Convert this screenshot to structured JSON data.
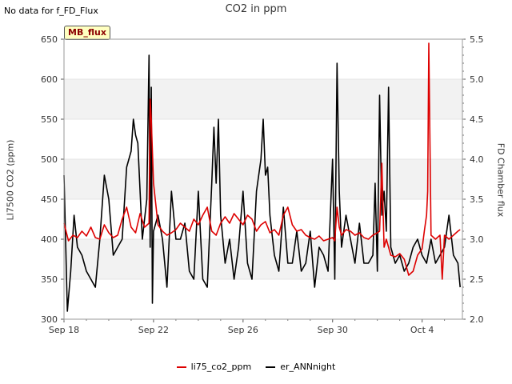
{
  "note": "No data for f_FD_Flux",
  "badge": "MB_flux",
  "chart_data": {
    "type": "line",
    "title": "CO2 in ppm",
    "ylabel": "LI7500 CO2 (ppm)",
    "y2label": "FD Chamber flux",
    "xlim": [
      0,
      17.8
    ],
    "ylim": [
      300,
      650
    ],
    "y2lim": [
      2.0,
      5.5
    ],
    "x_ticks": [
      0,
      4,
      8,
      12,
      16
    ],
    "x_tick_labels": [
      "Sep 18",
      "Sep 22",
      "Sep 26",
      "Sep 30",
      "Oct 4"
    ],
    "y_ticks": [
      300,
      350,
      400,
      450,
      500,
      550,
      600,
      650
    ],
    "y2_ticks": [
      2.0,
      2.5,
      3.0,
      3.5,
      4.0,
      4.5,
      5.0,
      5.5
    ],
    "grid": "horizontal bands",
    "legend_position": "bottom",
    "series": [
      {
        "name": "li75_co2_ppm",
        "color": "#dd0000",
        "axis": "left",
        "x": [
          0.0,
          0.2,
          0.4,
          0.6,
          0.8,
          1.0,
          1.2,
          1.4,
          1.6,
          1.8,
          2.0,
          2.2,
          2.4,
          2.6,
          2.8,
          3.0,
          3.2,
          3.4,
          3.6,
          3.8,
          3.85,
          3.9,
          4.0,
          4.2,
          4.4,
          4.6,
          4.8,
          5.0,
          5.2,
          5.4,
          5.6,
          5.8,
          6.0,
          6.2,
          6.4,
          6.6,
          6.8,
          7.0,
          7.2,
          7.4,
          7.6,
          7.8,
          8.0,
          8.2,
          8.4,
          8.6,
          8.8,
          9.0,
          9.2,
          9.4,
          9.6,
          9.8,
          10.0,
          10.2,
          10.4,
          10.6,
          10.8,
          11.0,
          11.2,
          11.4,
          11.6,
          11.8,
          12.0,
          12.1,
          12.2,
          12.3,
          12.4,
          12.6,
          12.8,
          13.0,
          13.2,
          13.4,
          13.6,
          13.8,
          14.0,
          14.1,
          14.2,
          14.3,
          14.4,
          14.6,
          14.8,
          15.0,
          15.2,
          15.4,
          15.6,
          15.8,
          16.0,
          16.1,
          16.2,
          16.25,
          16.3,
          16.4,
          16.6,
          16.8,
          16.9,
          17.0,
          17.2,
          17.4,
          17.6,
          17.7
        ],
        "values": [
          420,
          398,
          405,
          402,
          410,
          404,
          415,
          402,
          400,
          418,
          408,
          402,
          405,
          425,
          440,
          415,
          408,
          432,
          415,
          420,
          575,
          550,
          470,
          418,
          410,
          405,
          408,
          412,
          420,
          415,
          410,
          425,
          418,
          430,
          440,
          410,
          405,
          420,
          428,
          420,
          432,
          425,
          418,
          430,
          425,
          410,
          418,
          422,
          408,
          412,
          405,
          430,
          440,
          418,
          410,
          412,
          405,
          402,
          400,
          404,
          398,
          400,
          402,
          398,
          440,
          415,
          405,
          412,
          410,
          405,
          408,
          402,
          400,
          405,
          408,
          410,
          495,
          390,
          400,
          380,
          378,
          382,
          375,
          355,
          360,
          380,
          388,
          410,
          430,
          460,
          645,
          405,
          400,
          405,
          350,
          405,
          400,
          405,
          410,
          412
        ]
      },
      {
        "name": "er_ANNnight",
        "color": "#000000",
        "axis": "right",
        "x": [
          0.0,
          0.15,
          0.3,
          0.45,
          0.6,
          0.8,
          1.0,
          1.2,
          1.4,
          1.6,
          1.8,
          2.0,
          2.2,
          2.4,
          2.6,
          2.8,
          3.0,
          3.1,
          3.2,
          3.3,
          3.5,
          3.7,
          3.8,
          3.85,
          3.9,
          3.95,
          4.0,
          4.2,
          4.4,
          4.6,
          4.8,
          5.0,
          5.2,
          5.4,
          5.6,
          5.8,
          6.0,
          6.2,
          6.4,
          6.6,
          6.7,
          6.8,
          6.9,
          7.0,
          7.2,
          7.4,
          7.6,
          7.8,
          8.0,
          8.2,
          8.4,
          8.6,
          8.8,
          8.9,
          9.0,
          9.1,
          9.2,
          9.4,
          9.6,
          9.8,
          10.0,
          10.2,
          10.4,
          10.6,
          10.8,
          11.0,
          11.2,
          11.4,
          11.6,
          11.8,
          12.0,
          12.1,
          12.2,
          12.3,
          12.4,
          12.6,
          12.8,
          13.0,
          13.2,
          13.4,
          13.6,
          13.8,
          13.9,
          14.0,
          14.1,
          14.2,
          14.3,
          14.4,
          14.5,
          14.6,
          14.8,
          15.0,
          15.2,
          15.4,
          15.6,
          15.8,
          16.0,
          16.2,
          16.4,
          16.6,
          16.8,
          17.0,
          17.2,
          17.4,
          17.6,
          17.7
        ],
        "values": [
          3.8,
          2.1,
          2.6,
          3.3,
          2.9,
          2.8,
          2.6,
          2.5,
          2.4,
          3.0,
          3.8,
          3.5,
          2.8,
          2.9,
          3.0,
          3.9,
          4.1,
          4.5,
          4.3,
          4.2,
          3.0,
          3.5,
          5.3,
          2.9,
          4.9,
          2.2,
          3.1,
          3.3,
          3.0,
          2.4,
          3.6,
          3.0,
          3.0,
          3.2,
          2.6,
          2.5,
          3.6,
          2.5,
          2.4,
          3.7,
          4.4,
          3.7,
          4.5,
          3.3,
          2.7,
          3.0,
          2.5,
          2.9,
          3.6,
          2.7,
          2.5,
          3.6,
          4.0,
          4.5,
          3.8,
          3.9,
          3.3,
          2.8,
          2.6,
          3.4,
          2.7,
          2.7,
          3.1,
          2.6,
          2.7,
          3.1,
          2.4,
          2.9,
          2.8,
          2.6,
          4.0,
          2.5,
          5.2,
          3.6,
          2.9,
          3.3,
          3.0,
          2.7,
          3.2,
          2.7,
          2.7,
          2.8,
          3.7,
          2.6,
          4.8,
          3.3,
          3.6,
          3.1,
          4.9,
          2.9,
          2.7,
          2.8,
          2.6,
          2.7,
          2.9,
          3.0,
          2.8,
          2.7,
          3.0,
          2.7,
          2.8,
          2.9,
          3.3,
          2.8,
          2.7,
          2.4
        ]
      }
    ]
  }
}
